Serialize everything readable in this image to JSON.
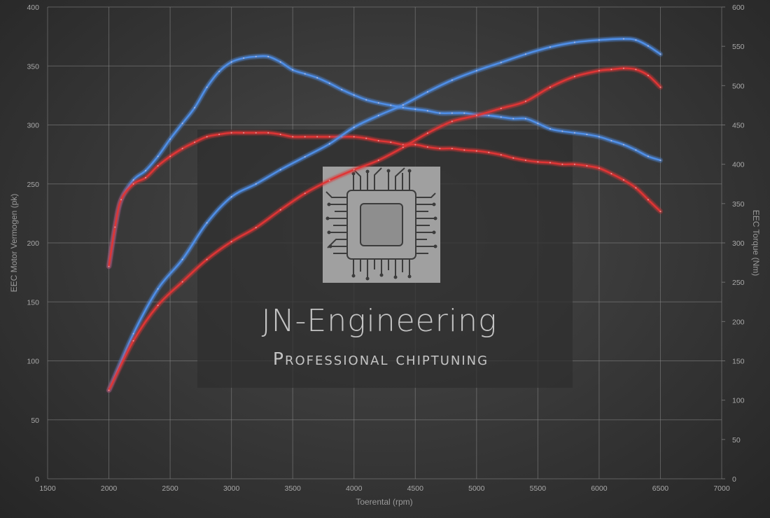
{
  "chart_data": {
    "type": "line",
    "xlabel": "Toerental (rpm)",
    "ylabel_left": "EEC Motor Vermogen (pk)",
    "ylabel_right": "EEC Torque (Nm)",
    "xlim": [
      1500,
      7000
    ],
    "ylim_left": [
      0,
      400
    ],
    "ylim_right": [
      0,
      600
    ],
    "x_ticks": [
      1500,
      2000,
      2500,
      3000,
      3500,
      4000,
      4500,
      5000,
      5500,
      6000,
      6500,
      7000
    ],
    "y_ticks_left": [
      0,
      50,
      100,
      150,
      200,
      250,
      300,
      350,
      400
    ],
    "y_ticks_right": [
      0,
      50,
      100,
      150,
      200,
      250,
      300,
      350,
      400,
      450,
      500,
      550,
      600
    ],
    "grid": true,
    "colors": {
      "tuned": "#4f8fe8",
      "stock": "#e03535"
    },
    "series": [
      {
        "axis": "right",
        "color": "tuned",
        "x": [
          2000,
          2050,
          2100,
          2200,
          2300,
          2400,
          2500,
          2600,
          2700,
          2800,
          2900,
          3000,
          3100,
          3200,
          3300,
          3400,
          3500,
          3600,
          3700,
          3800,
          3900,
          4000,
          4100,
          4200,
          4300,
          4400,
          4500,
          4600,
          4700,
          4800,
          4900,
          5000,
          5100,
          5200,
          5300,
          5400,
          5500,
          5600,
          5700,
          5800,
          5900,
          6000,
          6100,
          6200,
          6300,
          6400,
          6500
        ],
        "values": [
          270,
          320,
          355,
          380,
          392,
          410,
          432,
          452,
          472,
          498,
          518,
          530,
          535,
          537,
          537,
          530,
          520,
          515,
          510,
          503,
          495,
          488,
          482,
          478,
          475,
          472,
          470,
          468,
          465,
          465,
          465,
          463,
          462,
          460,
          458,
          458,
          452,
          445,
          442,
          440,
          438,
          435,
          430,
          425,
          418,
          410,
          405
        ]
      },
      {
        "axis": "right",
        "color": "stock",
        "x": [
          2000,
          2050,
          2100,
          2200,
          2300,
          2400,
          2500,
          2600,
          2700,
          2800,
          2900,
          3000,
          3100,
          3200,
          3300,
          3400,
          3500,
          3600,
          3700,
          3800,
          3900,
          4000,
          4100,
          4200,
          4300,
          4400,
          4500,
          4600,
          4700,
          4800,
          4900,
          5000,
          5100,
          5200,
          5300,
          5400,
          5500,
          5600,
          5700,
          5800,
          5900,
          6000,
          6100,
          6200,
          6300,
          6400,
          6500
        ],
        "values": [
          270,
          320,
          355,
          375,
          383,
          398,
          410,
          420,
          428,
          435,
          438,
          440,
          440,
          440,
          440,
          438,
          435,
          435,
          435,
          435,
          435,
          435,
          433,
          430,
          428,
          425,
          425,
          422,
          420,
          420,
          418,
          417,
          415,
          412,
          408,
          405,
          403,
          402,
          400,
          400,
          398,
          395,
          388,
          380,
          370,
          355,
          340
        ]
      },
      {
        "axis": "left",
        "color": "tuned",
        "x": [
          2000,
          2200,
          2400,
          2600,
          2800,
          3000,
          3200,
          3400,
          3600,
          3800,
          4000,
          4200,
          4400,
          4600,
          4800,
          5000,
          5200,
          5400,
          5600,
          5800,
          6000,
          6200,
          6300,
          6400,
          6500
        ],
        "values": [
          75,
          123,
          161,
          186,
          217,
          239,
          250,
          262,
          273,
          284,
          298,
          308,
          317,
          328,
          338,
          346,
          353,
          360,
          366,
          370,
          372,
          373,
          372,
          367,
          360
        ]
      },
      {
        "axis": "left",
        "color": "stock",
        "x": [
          2000,
          2200,
          2400,
          2600,
          2800,
          3000,
          3200,
          3400,
          3600,
          3800,
          4000,
          4200,
          4400,
          4600,
          4800,
          5000,
          5200,
          5400,
          5600,
          5800,
          6000,
          6100,
          6200,
          6300,
          6400,
          6500
        ],
        "values": [
          75,
          117,
          147,
          167,
          186,
          201,
          213,
          228,
          242,
          253,
          262,
          270,
          281,
          293,
          303,
          308,
          314,
          320,
          332,
          341,
          346,
          347,
          348,
          347,
          342,
          332
        ]
      }
    ]
  },
  "watermark": {
    "title": "JN-Engineering",
    "subtitle": "Professional chiptuning"
  }
}
